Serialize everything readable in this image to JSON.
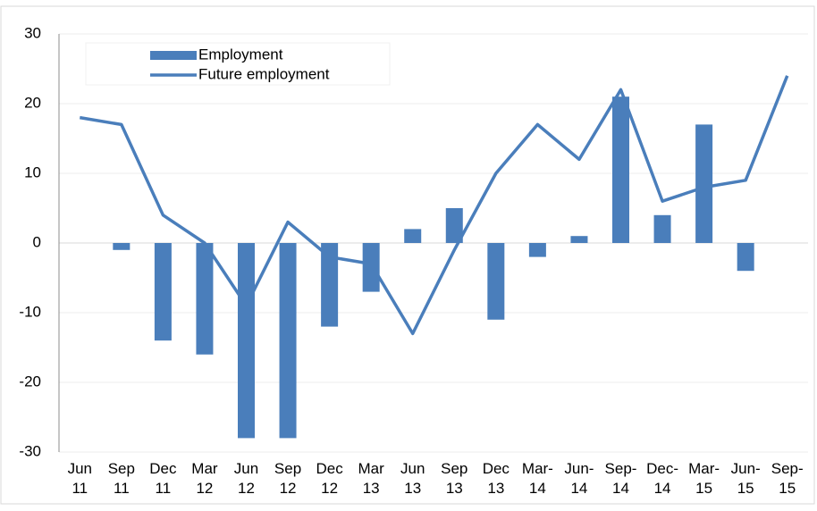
{
  "chart_data": {
    "type": "bar-line",
    "categories": [
      "Jun 11",
      "Sep 11",
      "Dec 11",
      "Mar 12",
      "Jun 12",
      "Sep 12",
      "Dec 12",
      "Mar 13",
      "Jun 13",
      "Sep 13",
      "Dec 13",
      "Mar-14",
      "Jun-14",
      "Sep-14",
      "Dec-14",
      "Mar-15",
      "Jun-15",
      "Sep-15"
    ],
    "series": [
      {
        "name": "Employment",
        "type": "bar",
        "color": "#4a7ebb",
        "values": [
          null,
          -1,
          -14,
          -16,
          -28,
          -28,
          -12,
          -7,
          2,
          5,
          -11,
          -2,
          1,
          21,
          4,
          17,
          -4,
          null
        ]
      },
      {
        "name": "Future employment",
        "type": "line",
        "color": "#4a7ebb",
        "values": [
          18,
          17,
          4,
          0,
          -9,
          3,
          -2,
          -3,
          -13,
          -1,
          10,
          17,
          12,
          22,
          6,
          8,
          9,
          24
        ]
      }
    ],
    "ylim": [
      -30,
      30
    ],
    "yticks": [
      -30,
      -20,
      -10,
      0,
      10,
      20,
      30
    ],
    "grid": true,
    "legend": "top-left"
  }
}
